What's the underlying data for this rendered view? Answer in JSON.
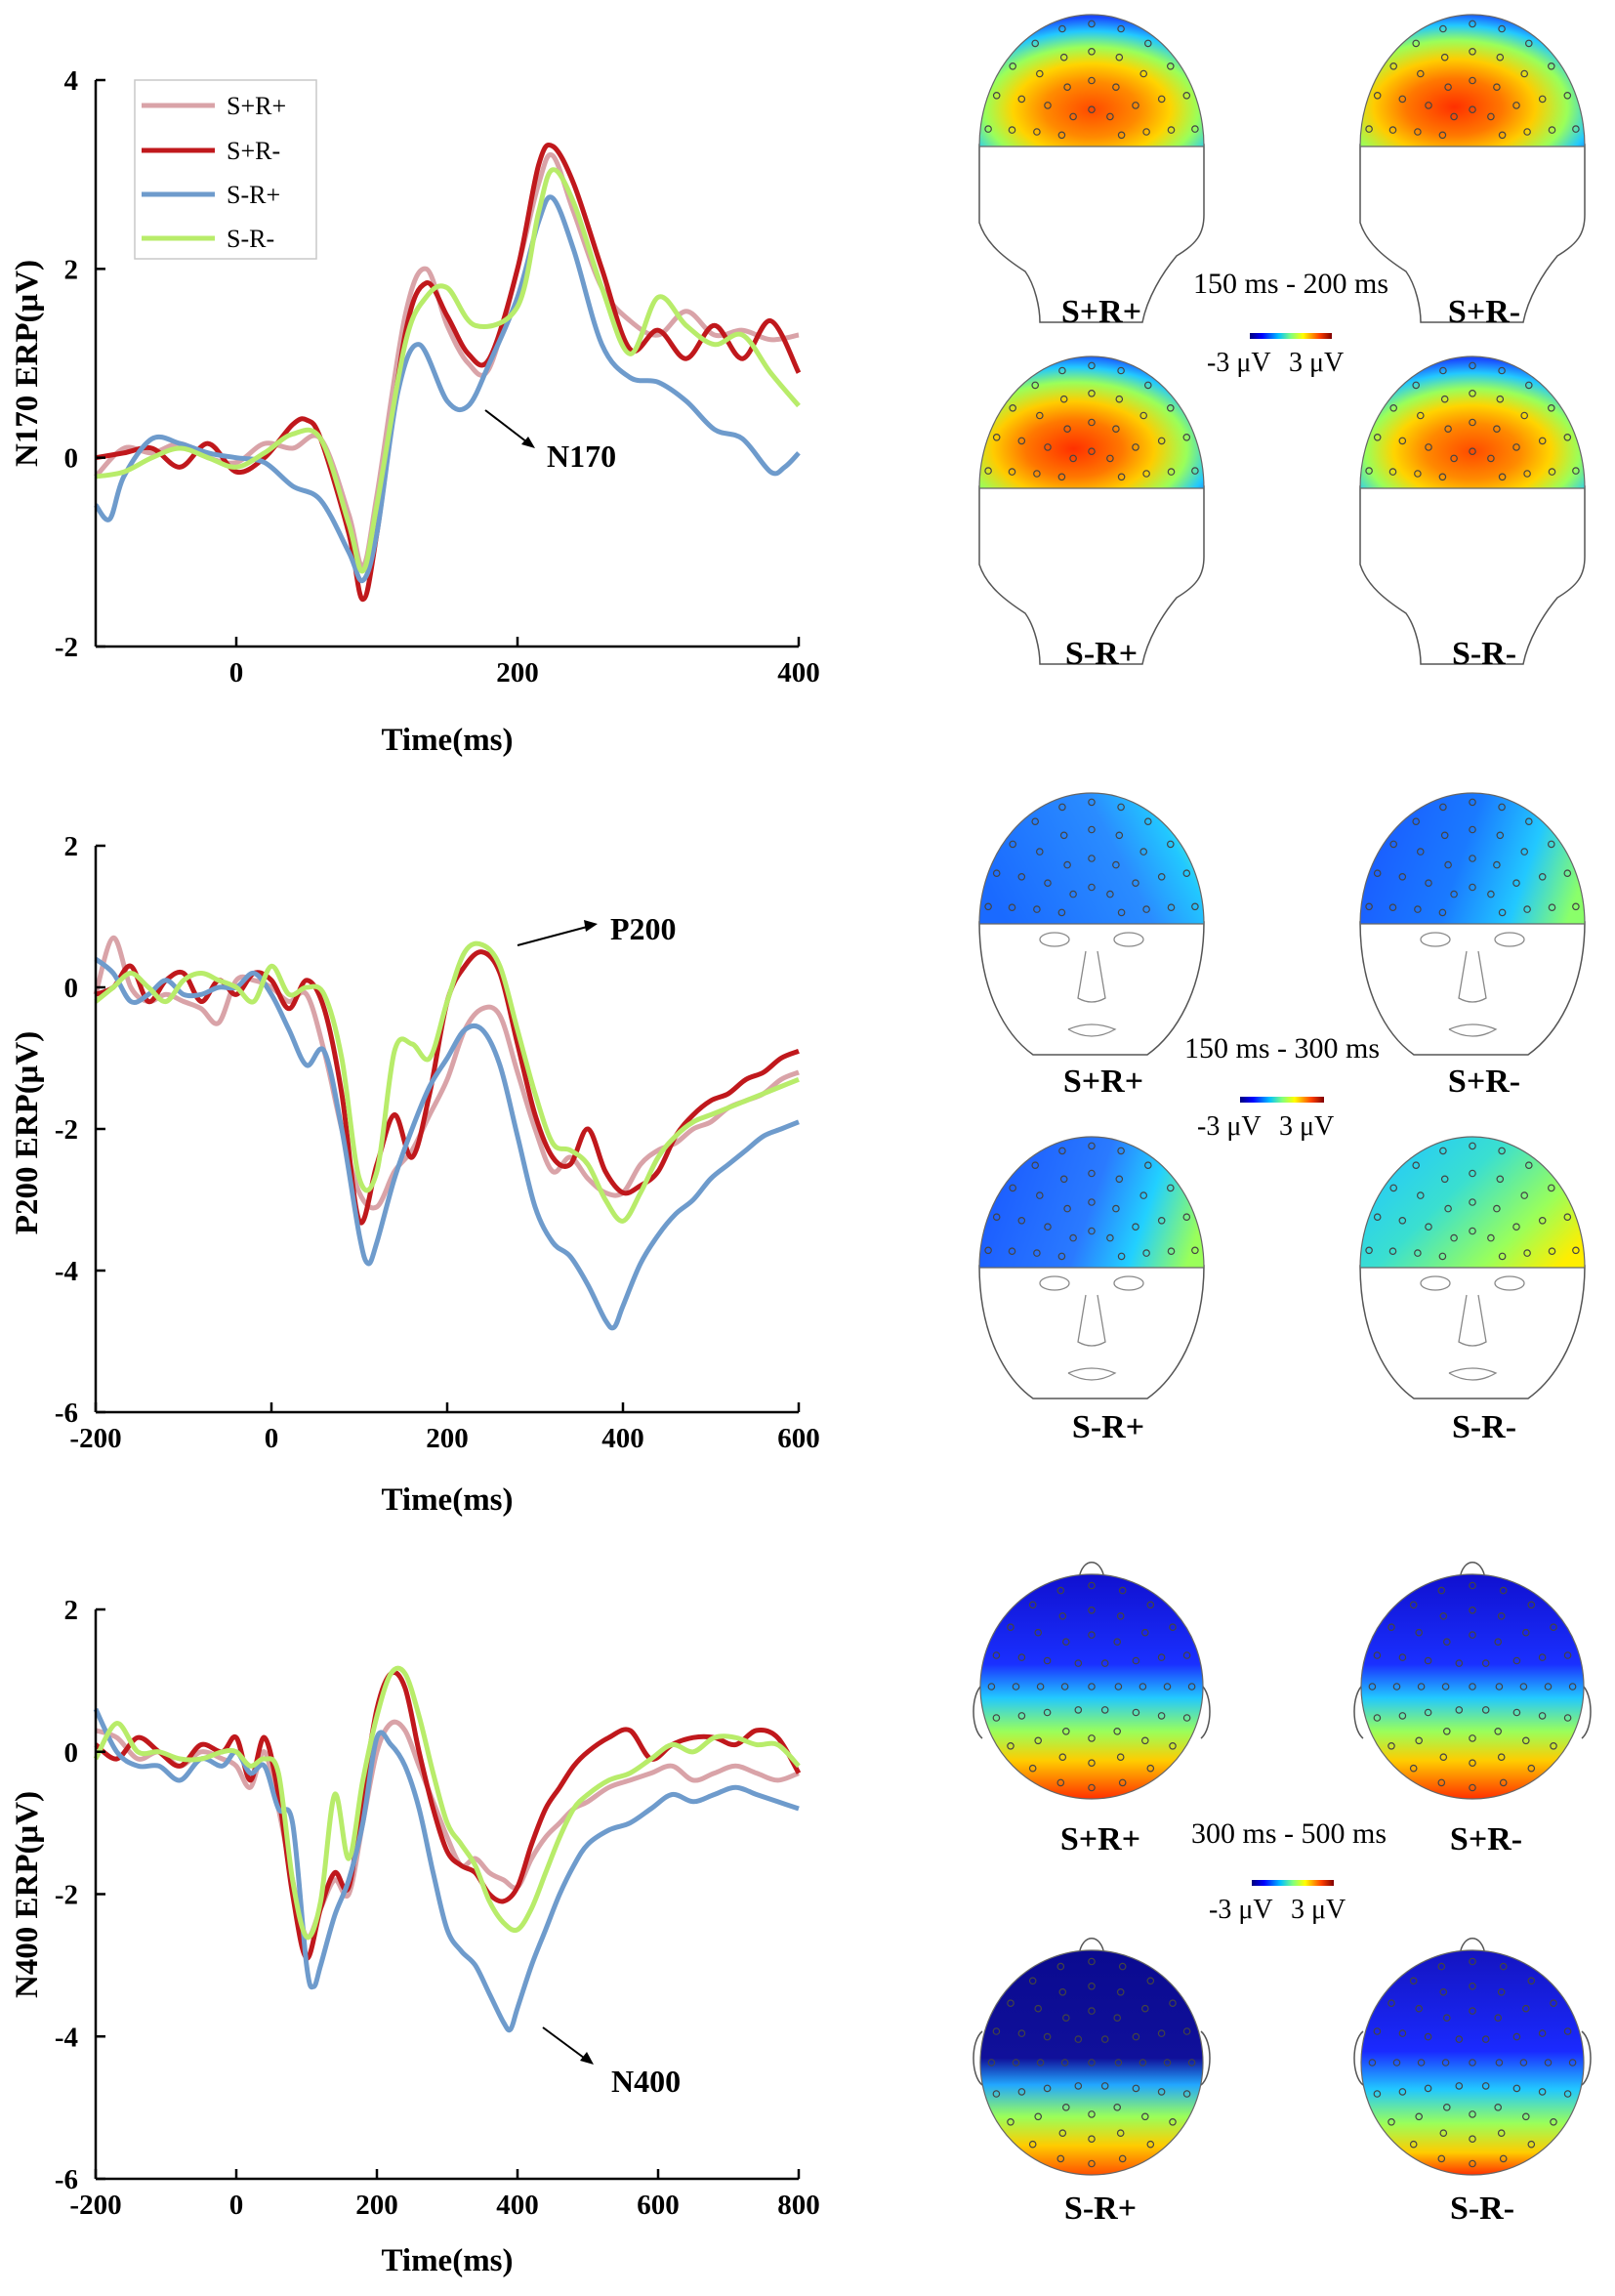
{
  "chart_data": [
    {
      "type": "line",
      "ylabel": "N170 ERP(μV)",
      "xlabel": "Time(ms)",
      "xlim": [
        -100,
        400
      ],
      "ylim": [
        -2,
        4
      ],
      "xticks": [
        0,
        200,
        400
      ],
      "yticks": [
        -2,
        0,
        2,
        4
      ],
      "annotation": {
        "text": "N170",
        "at": [
          160,
          0.6
        ]
      },
      "legend": {
        "position": "top-left"
      },
      "series": [
        {
          "name": "S+R+",
          "color": "#d9a3a8",
          "x": [
            -100,
            -80,
            -60,
            -40,
            -20,
            0,
            20,
            40,
            60,
            80,
            90,
            100,
            120,
            135,
            150,
            165,
            180,
            200,
            215,
            225,
            240,
            260,
            280,
            300,
            320,
            340,
            360,
            380,
            400
          ],
          "y": [
            -0.2,
            0.1,
            0.05,
            0.15,
            0.0,
            -0.05,
            0.15,
            0.1,
            0.2,
            -0.6,
            -1.15,
            -0.4,
            1.5,
            2.0,
            1.4,
            1.0,
            0.95,
            2.0,
            2.9,
            3.2,
            2.6,
            1.8,
            1.45,
            1.3,
            1.55,
            1.3,
            1.35,
            1.25,
            1.3
          ]
        },
        {
          "name": "S+R-",
          "color": "#c0181c",
          "x": [
            -100,
            -80,
            -60,
            -40,
            -20,
            0,
            20,
            40,
            50,
            60,
            80,
            90,
            100,
            120,
            135,
            150,
            165,
            180,
            200,
            215,
            225,
            240,
            260,
            280,
            300,
            320,
            340,
            360,
            380,
            400
          ],
          "y": [
            0.0,
            0.05,
            0.1,
            -0.1,
            0.15,
            -0.15,
            0.0,
            0.35,
            0.4,
            0.2,
            -0.8,
            -1.5,
            -0.8,
            1.3,
            1.85,
            1.5,
            1.1,
            1.05,
            2.0,
            3.1,
            3.3,
            2.9,
            2.0,
            1.15,
            1.35,
            1.05,
            1.4,
            1.05,
            1.45,
            0.9
          ]
        },
        {
          "name": "S-R+",
          "color": "#6e9bcc",
          "x": [
            -100,
            -90,
            -80,
            -60,
            -40,
            -20,
            0,
            20,
            40,
            60,
            80,
            90,
            100,
            115,
            130,
            150,
            165,
            180,
            200,
            215,
            225,
            240,
            260,
            280,
            300,
            320,
            340,
            360,
            380,
            390,
            400
          ],
          "y": [
            -0.5,
            -0.65,
            -0.2,
            0.2,
            0.15,
            0.05,
            0.0,
            -0.05,
            -0.3,
            -0.45,
            -1.0,
            -1.3,
            -0.8,
            0.7,
            1.2,
            0.6,
            0.55,
            1.0,
            1.7,
            2.5,
            2.75,
            2.2,
            1.2,
            0.85,
            0.8,
            0.6,
            0.3,
            0.2,
            -0.15,
            -0.1,
            0.05
          ]
        },
        {
          "name": "S-R-",
          "color": "#b8ec6a",
          "x": [
            -100,
            -80,
            -60,
            -40,
            -20,
            0,
            20,
            40,
            60,
            80,
            90,
            100,
            120,
            135,
            150,
            170,
            200,
            215,
            225,
            240,
            260,
            280,
            300,
            320,
            340,
            360,
            380,
            400
          ],
          "y": [
            -0.2,
            -0.15,
            0.0,
            0.1,
            0.0,
            -0.1,
            0.05,
            0.25,
            0.2,
            -0.7,
            -1.2,
            -0.5,
            1.2,
            1.7,
            1.8,
            1.4,
            1.6,
            2.6,
            3.05,
            2.7,
            1.8,
            1.1,
            1.7,
            1.4,
            1.2,
            1.3,
            0.9,
            0.55
          ]
        }
      ]
    },
    {
      "type": "line",
      "ylabel": "P200 ERP(μV)",
      "xlabel": "Time(ms)",
      "xlim": [
        -200,
        600
      ],
      "ylim": [
        -6,
        2
      ],
      "xticks": [
        -200,
        0,
        200,
        400,
        600
      ],
      "yticks": [
        -6,
        -4,
        -2,
        0,
        2
      ],
      "annotation": {
        "text": "P200",
        "at": [
          250,
          0.5
        ]
      },
      "series": [
        {
          "name": "S+R+",
          "color": "#d9a3a8",
          "x": [
            -200,
            -180,
            -160,
            -140,
            -120,
            -100,
            -80,
            -60,
            -40,
            -20,
            0,
            20,
            40,
            60,
            80,
            100,
            120,
            140,
            160,
            180,
            200,
            220,
            240,
            260,
            280,
            300,
            320,
            340,
            360,
            380,
            400,
            420,
            440,
            460,
            480,
            500,
            520,
            540,
            560,
            580,
            600
          ],
          "y": [
            -0.1,
            0.7,
            0.0,
            -0.2,
            -0.1,
            -0.2,
            -0.3,
            -0.5,
            0.1,
            0.1,
            0.0,
            -0.2,
            -0.1,
            -0.9,
            -2.0,
            -2.9,
            -3.1,
            -2.6,
            -2.3,
            -1.8,
            -1.3,
            -0.6,
            -0.3,
            -0.4,
            -1.2,
            -2.0,
            -2.6,
            -2.4,
            -2.7,
            -2.9,
            -2.9,
            -2.5,
            -2.3,
            -2.2,
            -2.0,
            -1.9,
            -1.7,
            -1.6,
            -1.5,
            -1.3,
            -1.2
          ]
        },
        {
          "name": "S+R-",
          "color": "#c0181c",
          "x": [
            -200,
            -180,
            -160,
            -140,
            -120,
            -100,
            -80,
            -60,
            -40,
            -20,
            0,
            20,
            40,
            60,
            80,
            100,
            120,
            140,
            160,
            180,
            200,
            220,
            240,
            260,
            280,
            300,
            320,
            340,
            360,
            380,
            400,
            420,
            440,
            460,
            480,
            500,
            520,
            540,
            560,
            580,
            600
          ],
          "y": [
            -0.1,
            0.0,
            0.3,
            -0.2,
            0.1,
            0.2,
            -0.2,
            0.1,
            -0.1,
            0.2,
            0.1,
            -0.3,
            0.1,
            -0.3,
            -1.5,
            -3.3,
            -2.5,
            -1.8,
            -2.4,
            -1.5,
            -0.2,
            0.3,
            0.5,
            0.2,
            -0.8,
            -1.8,
            -2.4,
            -2.5,
            -2.0,
            -2.6,
            -2.9,
            -2.8,
            -2.6,
            -2.1,
            -1.8,
            -1.6,
            -1.5,
            -1.3,
            -1.2,
            -1.0,
            -0.9
          ]
        },
        {
          "name": "S-R+",
          "color": "#6e9bcc",
          "x": [
            -200,
            -180,
            -160,
            -140,
            -120,
            -100,
            -80,
            -60,
            -40,
            -20,
            0,
            20,
            40,
            60,
            80,
            100,
            110,
            120,
            140,
            160,
            180,
            200,
            220,
            240,
            260,
            280,
            300,
            320,
            340,
            360,
            380,
            390,
            400,
            420,
            440,
            460,
            480,
            500,
            520,
            540,
            560,
            580,
            600
          ],
          "y": [
            0.4,
            0.2,
            -0.2,
            -0.1,
            0.1,
            -0.1,
            -0.1,
            0.0,
            0.0,
            0.2,
            -0.1,
            -0.6,
            -1.1,
            -0.9,
            -2.0,
            -3.5,
            -3.9,
            -3.6,
            -2.7,
            -2.0,
            -1.4,
            -1.0,
            -0.6,
            -0.6,
            -1.1,
            -2.1,
            -3.1,
            -3.6,
            -3.8,
            -4.2,
            -4.7,
            -4.8,
            -4.5,
            -3.9,
            -3.5,
            -3.2,
            -3.0,
            -2.7,
            -2.5,
            -2.3,
            -2.1,
            -2.0,
            -1.9
          ]
        },
        {
          "name": "S-R-",
          "color": "#b8ec6a",
          "x": [
            -200,
            -180,
            -160,
            -140,
            -120,
            -100,
            -80,
            -60,
            -40,
            -20,
            0,
            20,
            40,
            60,
            80,
            100,
            120,
            140,
            160,
            180,
            200,
            220,
            240,
            260,
            280,
            300,
            320,
            340,
            360,
            380,
            400,
            420,
            440,
            460,
            480,
            500,
            520,
            540,
            560,
            580,
            600
          ],
          "y": [
            -0.2,
            0.0,
            0.2,
            0.0,
            -0.2,
            0.1,
            0.2,
            0.1,
            0.0,
            -0.2,
            0.3,
            -0.1,
            0.0,
            -0.1,
            -1.0,
            -2.7,
            -2.6,
            -0.9,
            -0.8,
            -1.0,
            -0.2,
            0.5,
            0.6,
            0.3,
            -0.6,
            -1.5,
            -2.2,
            -2.3,
            -2.5,
            -3.0,
            -3.3,
            -2.9,
            -2.4,
            -2.1,
            -1.9,
            -1.8,
            -1.7,
            -1.6,
            -1.5,
            -1.4,
            -1.3
          ]
        }
      ]
    },
    {
      "type": "line",
      "ylabel": "N400 ERP(μV)",
      "xlabel": "Time(ms)",
      "xlim": [
        -200,
        800
      ],
      "ylim": [
        -6,
        2
      ],
      "xticks": [
        -200,
        0,
        200,
        400,
        600,
        800
      ],
      "yticks": [
        -6,
        -4,
        -2,
        0,
        2
      ],
      "annotation": {
        "text": "N400",
        "at": [
          430,
          -3.8
        ]
      },
      "series": [
        {
          "name": "S+R+",
          "color": "#d9a3a8",
          "x": [
            -200,
            -170,
            -140,
            -110,
            -80,
            -50,
            -20,
            0,
            20,
            40,
            60,
            80,
            100,
            120,
            140,
            160,
            180,
            200,
            220,
            240,
            260,
            280,
            300,
            320,
            340,
            360,
            380,
            400,
            420,
            440,
            460,
            480,
            500,
            530,
            560,
            590,
            620,
            650,
            680,
            710,
            740,
            770,
            800
          ],
          "y": [
            0.3,
            0.2,
            -0.1,
            0.0,
            -0.2,
            0.0,
            -0.1,
            -0.2,
            -0.5,
            0.0,
            -0.8,
            -1.8,
            -2.6,
            -2.2,
            -1.8,
            -2.0,
            -1.0,
            0.0,
            0.4,
            0.3,
            -0.2,
            -0.7,
            -1.2,
            -1.6,
            -1.5,
            -1.7,
            -1.8,
            -1.9,
            -1.5,
            -1.2,
            -1.0,
            -0.8,
            -0.7,
            -0.5,
            -0.4,
            -0.3,
            -0.2,
            -0.4,
            -0.3,
            -0.2,
            -0.3,
            -0.4,
            -0.3
          ]
        },
        {
          "name": "S+R-",
          "color": "#c0181c",
          "x": [
            -200,
            -170,
            -140,
            -110,
            -80,
            -50,
            -20,
            0,
            20,
            40,
            60,
            80,
            100,
            120,
            140,
            160,
            180,
            200,
            220,
            240,
            260,
            280,
            300,
            320,
            340,
            360,
            380,
            400,
            420,
            440,
            460,
            480,
            500,
            530,
            560,
            590,
            620,
            650,
            680,
            710,
            740,
            770,
            800
          ],
          "y": [
            0.1,
            -0.1,
            0.2,
            0.0,
            -0.2,
            0.1,
            0.0,
            0.2,
            -0.4,
            0.2,
            -0.6,
            -2.0,
            -2.9,
            -2.2,
            -1.7,
            -1.9,
            -0.6,
            0.6,
            1.1,
            0.9,
            0.0,
            -0.8,
            -1.4,
            -1.6,
            -1.7,
            -2.0,
            -2.1,
            -1.9,
            -1.3,
            -0.8,
            -0.5,
            -0.2,
            0.0,
            0.2,
            0.3,
            -0.1,
            0.1,
            0.2,
            0.2,
            0.1,
            0.3,
            0.2,
            -0.3
          ]
        },
        {
          "name": "S-R+",
          "color": "#6e9bcc",
          "x": [
            -200,
            -170,
            -140,
            -110,
            -80,
            -50,
            -20,
            0,
            20,
            40,
            60,
            80,
            100,
            110,
            120,
            140,
            160,
            180,
            200,
            220,
            240,
            260,
            280,
            300,
            320,
            340,
            360,
            380,
            390,
            400,
            420,
            440,
            460,
            480,
            500,
            530,
            560,
            590,
            620,
            650,
            680,
            710,
            740,
            770,
            800
          ],
          "y": [
            0.6,
            0.0,
            -0.2,
            -0.2,
            -0.4,
            -0.1,
            -0.2,
            0.0,
            -0.3,
            -0.2,
            -0.8,
            -1.0,
            -3.0,
            -3.3,
            -3.0,
            -2.3,
            -1.8,
            -1.0,
            0.2,
            0.1,
            -0.2,
            -0.8,
            -1.7,
            -2.5,
            -2.8,
            -3.0,
            -3.4,
            -3.8,
            -3.9,
            -3.6,
            -3.0,
            -2.5,
            -2.0,
            -1.6,
            -1.3,
            -1.1,
            -1.0,
            -0.8,
            -0.6,
            -0.7,
            -0.6,
            -0.5,
            -0.6,
            -0.7,
            -0.8
          ]
        },
        {
          "name": "S-R-",
          "color": "#b8ec6a",
          "x": [
            -200,
            -170,
            -140,
            -110,
            -80,
            -50,
            -20,
            0,
            20,
            40,
            60,
            80,
            100,
            120,
            140,
            160,
            180,
            200,
            220,
            240,
            260,
            280,
            300,
            320,
            340,
            360,
            380,
            400,
            420,
            440,
            460,
            480,
            500,
            530,
            560,
            590,
            620,
            650,
            680,
            710,
            740,
            770,
            800
          ],
          "y": [
            -0.1,
            0.4,
            0.0,
            0.0,
            -0.1,
            -0.1,
            0.0,
            0.0,
            -0.2,
            -0.1,
            -0.3,
            -1.8,
            -2.6,
            -2.1,
            -0.6,
            -1.5,
            -0.4,
            0.5,
            1.1,
            1.1,
            0.5,
            -0.3,
            -1.0,
            -1.3,
            -1.6,
            -2.1,
            -2.4,
            -2.5,
            -2.2,
            -1.7,
            -1.2,
            -0.8,
            -0.6,
            -0.4,
            -0.3,
            -0.1,
            0.1,
            0.0,
            0.2,
            0.2,
            0.1,
            0.1,
            -0.2
          ]
        }
      ]
    }
  ],
  "legend": [
    "S+R+",
    "S+R-",
    "S-R+",
    "S-R-"
  ],
  "topomaps": [
    {
      "component": "N170",
      "time_range": "150 ms - 200 ms",
      "colorbar": {
        "min": "-3 μV",
        "max": "3 μV"
      },
      "labels": [
        "S+R+",
        "S+R-",
        "S-R+",
        "S-R-"
      ]
    },
    {
      "component": "P200",
      "time_range": "150 ms - 300 ms",
      "colorbar": {
        "min": "-3 μV",
        "max": "3 μV"
      },
      "labels": [
        "S+R+",
        "S+R-",
        "S-R+",
        "S-R-"
      ]
    },
    {
      "component": "N400",
      "time_range": "300 ms - 500 ms",
      "colorbar": {
        "min": "-3 μV",
        "max": "3 μV"
      },
      "labels": [
        "S+R+",
        "S+R-",
        "S-R+",
        "S-R-"
      ]
    }
  ]
}
